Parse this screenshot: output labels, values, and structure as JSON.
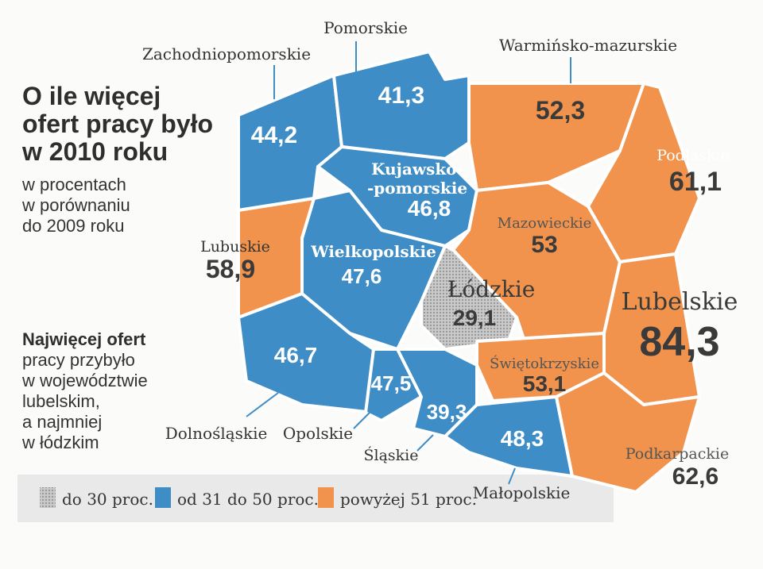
{
  "title": [
    "O ile więcej",
    "ofert pracy było",
    "w 2010 roku"
  ],
  "subtitle": [
    "w procentach",
    "w porównaniu",
    "do 2009 roku"
  ],
  "note": {
    "bold": "Najwięcej ofert",
    "lines": [
      "pracy przybyło",
      "w województwie",
      "lubelskim,",
      "a najmniej",
      "w łódzkim"
    ]
  },
  "legend": [
    {
      "label": "do 30 proc.",
      "color": "#b4b4b4"
    },
    {
      "label": "od 31 do 50 proc.",
      "color": "#3e8dc6"
    },
    {
      "label": "powyżej 51 proc.",
      "color": "#f1934c"
    }
  ],
  "regions": [
    {
      "name": "Zachodniopomorskie",
      "value": "44,2",
      "legend": 1
    },
    {
      "name": "Pomorskie",
      "value": "41,3",
      "legend": 1
    },
    {
      "name": "Warmińsko-mazurskie",
      "value": "52,3",
      "legend": 2
    },
    {
      "name": "Podlaskie",
      "value": "61,1",
      "legend": 2
    },
    {
      "name": [
        "Kujawsko-",
        "-pomorskie"
      ],
      "value": "46,8",
      "legend": 1
    },
    {
      "name": "Wielkopolskie",
      "value": "47,6",
      "legend": 1
    },
    {
      "name": "Lubuskie",
      "value": "58,9",
      "legend": 2
    },
    {
      "name": "Mazowieckie",
      "value": "53",
      "legend": 2
    },
    {
      "name": "Łódzkie",
      "value": "29,1",
      "legend": 0
    },
    {
      "name": "Lubelskie",
      "value": "84,3",
      "legend": 2
    },
    {
      "name": "Dolnośląskie",
      "value": "46,7",
      "legend": 1
    },
    {
      "name": "Opolskie",
      "value": "47,5",
      "legend": 1
    },
    {
      "name": "Śląskie",
      "value": "39,3",
      "legend": 1
    },
    {
      "name": "Świętokrzyskie",
      "value": "53,1",
      "legend": 2
    },
    {
      "name": "Małopolskie",
      "value": "48,3",
      "legend": 1
    },
    {
      "name": "Podkarpackie",
      "value": "62,6",
      "legend": 2
    }
  ]
}
